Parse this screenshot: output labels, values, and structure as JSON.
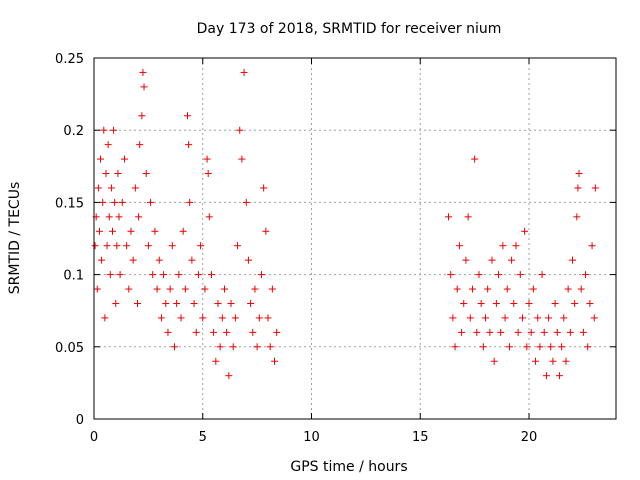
{
  "chart_data": {
    "type": "scatter",
    "title": "Day 173 of 2018, SRMTID for receiver nium",
    "xlabel": "GPS time / hours",
    "ylabel": "SRMTID / TECUs",
    "xlim": [
      0,
      24
    ],
    "ylim": [
      0,
      0.25
    ],
    "grid": true,
    "marker": "plus",
    "color": "#ee0000",
    "xticks": [
      0,
      5,
      10,
      15,
      20
    ],
    "xtick_labels": [
      "0",
      "5",
      "10",
      "15",
      "20"
    ],
    "yticks": [
      0,
      0.05,
      0.1,
      0.15,
      0.2,
      0.25
    ],
    "ytick_labels": [
      "0",
      "0.05",
      "0.1",
      "0.15",
      "0.2",
      "0.25"
    ],
    "series": [
      {
        "name": "SRMTID",
        "points": [
          [
            0.05,
            0.12
          ],
          [
            0.1,
            0.14
          ],
          [
            0.15,
            0.09
          ],
          [
            0.2,
            0.16
          ],
          [
            0.25,
            0.13
          ],
          [
            0.3,
            0.18
          ],
          [
            0.35,
            0.11
          ],
          [
            0.4,
            0.15
          ],
          [
            0.45,
            0.2
          ],
          [
            0.5,
            0.07
          ],
          [
            0.55,
            0.17
          ],
          [
            0.6,
            0.12
          ],
          [
            0.65,
            0.19
          ],
          [
            0.7,
            0.14
          ],
          [
            0.75,
            0.1
          ],
          [
            0.8,
            0.16
          ],
          [
            0.85,
            0.13
          ],
          [
            0.9,
            0.2
          ],
          [
            0.95,
            0.15
          ],
          [
            1.0,
            0.08
          ],
          [
            1.05,
            0.12
          ],
          [
            1.1,
            0.17
          ],
          [
            1.15,
            0.14
          ],
          [
            1.2,
            0.1
          ],
          [
            1.3,
            0.15
          ],
          [
            1.4,
            0.18
          ],
          [
            1.5,
            0.12
          ],
          [
            1.6,
            0.09
          ],
          [
            1.7,
            0.13
          ],
          [
            1.8,
            0.11
          ],
          [
            1.9,
            0.16
          ],
          [
            2.0,
            0.08
          ],
          [
            2.05,
            0.14
          ],
          [
            2.1,
            0.19
          ],
          [
            2.2,
            0.21
          ],
          [
            2.25,
            0.24
          ],
          [
            2.3,
            0.23
          ],
          [
            2.4,
            0.17
          ],
          [
            2.5,
            0.12
          ],
          [
            2.6,
            0.15
          ],
          [
            2.7,
            0.1
          ],
          [
            2.8,
            0.13
          ],
          [
            2.9,
            0.09
          ],
          [
            3.0,
            0.11
          ],
          [
            3.1,
            0.07
          ],
          [
            3.2,
            0.1
          ],
          [
            3.3,
            0.08
          ],
          [
            3.4,
            0.06
          ],
          [
            3.5,
            0.09
          ],
          [
            3.6,
            0.12
          ],
          [
            3.7,
            0.05
          ],
          [
            3.8,
            0.08
          ],
          [
            3.9,
            0.1
          ],
          [
            4.0,
            0.07
          ],
          [
            4.1,
            0.13
          ],
          [
            4.2,
            0.09
          ],
          [
            4.3,
            0.21
          ],
          [
            4.35,
            0.19
          ],
          [
            4.4,
            0.15
          ],
          [
            4.5,
            0.11
          ],
          [
            4.6,
            0.08
          ],
          [
            4.7,
            0.06
          ],
          [
            4.8,
            0.1
          ],
          [
            4.9,
            0.12
          ],
          [
            5.0,
            0.07
          ],
          [
            5.1,
            0.09
          ],
          [
            5.2,
            0.18
          ],
          [
            5.25,
            0.17
          ],
          [
            5.3,
            0.14
          ],
          [
            5.4,
            0.1
          ],
          [
            5.5,
            0.06
          ],
          [
            5.6,
            0.04
          ],
          [
            5.7,
            0.08
          ],
          [
            5.8,
            0.05
          ],
          [
            5.9,
            0.07
          ],
          [
            6.0,
            0.09
          ],
          [
            6.1,
            0.06
          ],
          [
            6.2,
            0.03
          ],
          [
            6.3,
            0.08
          ],
          [
            6.4,
            0.05
          ],
          [
            6.5,
            0.07
          ],
          [
            6.6,
            0.12
          ],
          [
            6.7,
            0.2
          ],
          [
            6.8,
            0.18
          ],
          [
            6.9,
            0.24
          ],
          [
            7.0,
            0.15
          ],
          [
            7.1,
            0.11
          ],
          [
            7.2,
            0.08
          ],
          [
            7.3,
            0.06
          ],
          [
            7.4,
            0.09
          ],
          [
            7.5,
            0.05
          ],
          [
            7.6,
            0.07
          ],
          [
            7.7,
            0.1
          ],
          [
            7.8,
            0.16
          ],
          [
            7.9,
            0.13
          ],
          [
            8.0,
            0.07
          ],
          [
            8.1,
            0.05
          ],
          [
            8.2,
            0.09
          ],
          [
            8.3,
            0.04
          ],
          [
            8.4,
            0.06
          ],
          [
            16.3,
            0.14
          ],
          [
            16.4,
            0.1
          ],
          [
            16.5,
            0.07
          ],
          [
            16.6,
            0.05
          ],
          [
            16.7,
            0.09
          ],
          [
            16.8,
            0.12
          ],
          [
            16.9,
            0.06
          ],
          [
            17.0,
            0.08
          ],
          [
            17.1,
            0.11
          ],
          [
            17.2,
            0.14
          ],
          [
            17.3,
            0.07
          ],
          [
            17.4,
            0.09
          ],
          [
            17.5,
            0.18
          ],
          [
            17.6,
            0.06
          ],
          [
            17.7,
            0.1
          ],
          [
            17.8,
            0.08
          ],
          [
            17.9,
            0.05
          ],
          [
            18.0,
            0.07
          ],
          [
            18.1,
            0.09
          ],
          [
            18.2,
            0.06
          ],
          [
            18.3,
            0.11
          ],
          [
            18.4,
            0.04
          ],
          [
            18.5,
            0.08
          ],
          [
            18.6,
            0.1
          ],
          [
            18.7,
            0.06
          ],
          [
            18.8,
            0.12
          ],
          [
            18.9,
            0.07
          ],
          [
            19.0,
            0.09
          ],
          [
            19.1,
            0.05
          ],
          [
            19.2,
            0.11
          ],
          [
            19.3,
            0.08
          ],
          [
            19.4,
            0.12
          ],
          [
            19.5,
            0.06
          ],
          [
            19.6,
            0.1
          ],
          [
            19.7,
            0.07
          ],
          [
            19.8,
            0.13
          ],
          [
            19.9,
            0.05
          ],
          [
            20.0,
            0.08
          ],
          [
            20.1,
            0.06
          ],
          [
            20.2,
            0.09
          ],
          [
            20.3,
            0.04
          ],
          [
            20.4,
            0.07
          ],
          [
            20.5,
            0.05
          ],
          [
            20.6,
            0.1
          ],
          [
            20.7,
            0.06
          ],
          [
            20.8,
            0.03
          ],
          [
            20.9,
            0.07
          ],
          [
            21.0,
            0.05
          ],
          [
            21.1,
            0.04
          ],
          [
            21.2,
            0.08
          ],
          [
            21.3,
            0.06
          ],
          [
            21.4,
            0.03
          ],
          [
            21.5,
            0.05
          ],
          [
            21.6,
            0.07
          ],
          [
            21.7,
            0.04
          ],
          [
            21.8,
            0.09
          ],
          [
            21.9,
            0.06
          ],
          [
            22.0,
            0.11
          ],
          [
            22.1,
            0.08
          ],
          [
            22.2,
            0.14
          ],
          [
            22.3,
            0.17
          ],
          [
            22.4,
            0.09
          ],
          [
            22.5,
            0.06
          ],
          [
            22.6,
            0.1
          ],
          [
            22.7,
            0.05
          ],
          [
            22.8,
            0.08
          ],
          [
            22.9,
            0.12
          ],
          [
            23.0,
            0.07
          ],
          [
            23.05,
            0.16
          ],
          [
            22.25,
            0.16
          ]
        ]
      }
    ]
  }
}
